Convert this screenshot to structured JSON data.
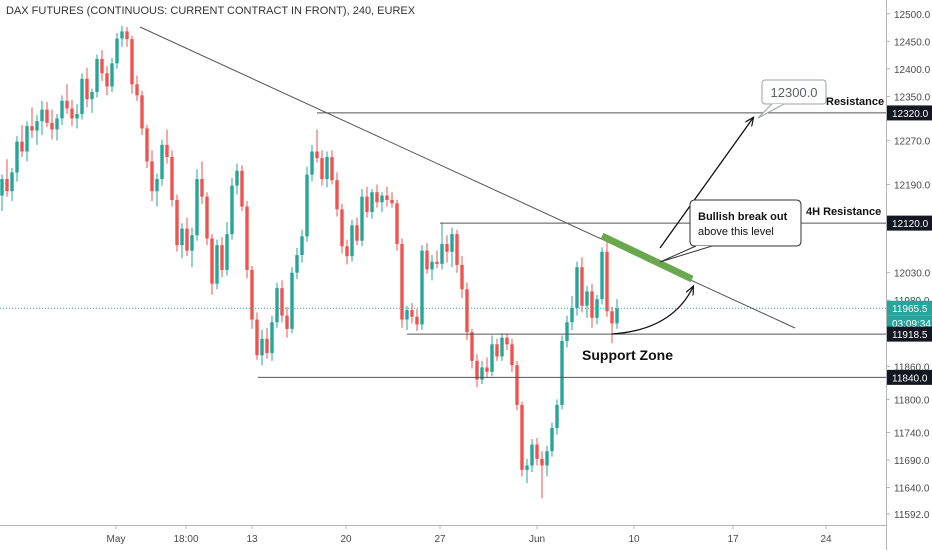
{
  "chart_data": {
    "type": "candlestick",
    "title": "DAX FUTURES (CONTINUOUS: CURRENT CONTRACT IN FRONT), 240, EUREX",
    "ylim": [
      11572,
      12525
    ],
    "y_ticks": [
      12500.0,
      12450.0,
      12400.0,
      12350.0,
      12270.0,
      12190.0,
      12030.0,
      11980.0,
      11860.0,
      11800.0,
      11740.0,
      11690.0,
      11640.0,
      11592.0
    ],
    "x_ticks": [
      "May",
      "18:00",
      "13",
      "20",
      "27",
      "Jun",
      "10",
      "17",
      "24"
    ],
    "price_labels": {
      "resistance": "12320.0",
      "resistance_4h": "12120.0",
      "current": "11965.5",
      "countdown": "03:09:34",
      "support_upper": "11918.5",
      "support_lower": "11840.0"
    },
    "levels": {
      "resistance": 12320.0,
      "resistance_4h": 12120.0,
      "current": 11965.5,
      "support_upper": 11918.5,
      "support_lower": 11840.0,
      "target": 12300.0
    },
    "annotations": {
      "resistance": "Resistance",
      "resistance_4h": "4H Resistance",
      "support_zone": "Support Zone",
      "target_box": "12300.0",
      "callout_line1": "Bullish break out",
      "callout_line2": "above this level"
    },
    "colors": {
      "up": "#26a69a",
      "down": "#ef5350",
      "line": "#555555",
      "breakout": "#6aa84f",
      "label_bg": "#131722",
      "current_line": "#26a69a"
    },
    "candles": [
      [
        12170,
        12208,
        12142,
        12200
      ],
      [
        12200,
        12236,
        12168,
        12178
      ],
      [
        12178,
        12220,
        12160,
        12212
      ],
      [
        12212,
        12278,
        12195,
        12268
      ],
      [
        12268,
        12298,
        12240,
        12250
      ],
      [
        12250,
        12305,
        12232,
        12296
      ],
      [
        12296,
        12330,
        12275,
        12288
      ],
      [
        12288,
        12316,
        12262,
        12305
      ],
      [
        12305,
        12342,
        12280,
        12326
      ],
      [
        12326,
        12340,
        12294,
        12302
      ],
      [
        12302,
        12326,
        12272,
        12290
      ],
      [
        12290,
        12318,
        12270,
        12310
      ],
      [
        12310,
        12352,
        12298,
        12342
      ],
      [
        12342,
        12372,
        12318,
        12328
      ],
      [
        12328,
        12344,
        12296,
        12310
      ],
      [
        12310,
        12336,
        12292,
        12318
      ],
      [
        12318,
        12392,
        12308,
        12382
      ],
      [
        12382,
        12402,
        12330,
        12345
      ],
      [
        12345,
        12364,
        12320,
        12358
      ],
      [
        12358,
        12426,
        12348,
        12418
      ],
      [
        12418,
        12434,
        12378,
        12392
      ],
      [
        12392,
        12405,
        12352,
        12368
      ],
      [
        12368,
        12420,
        12358,
        12410
      ],
      [
        12410,
        12465,
        12400,
        12455
      ],
      [
        12455,
        12478,
        12440,
        12468
      ],
      [
        12468,
        12476,
        12440,
        12454
      ],
      [
        12454,
        12460,
        12355,
        12372
      ],
      [
        12372,
        12388,
        12342,
        12352
      ],
      [
        12352,
        12360,
        12280,
        12292
      ],
      [
        12292,
        12298,
        12220,
        12232
      ],
      [
        12232,
        12252,
        12160,
        12178
      ],
      [
        12178,
        12210,
        12150,
        12200
      ],
      [
        12200,
        12272,
        12188,
        12262
      ],
      [
        12262,
        12290,
        12228,
        12240
      ],
      [
        12240,
        12252,
        12150,
        12162
      ],
      [
        12162,
        12172,
        12068,
        12080
      ],
      [
        12080,
        12120,
        12056,
        12110
      ],
      [
        12110,
        12130,
        12060,
        12070
      ],
      [
        12070,
        12112,
        12040,
        12098
      ],
      [
        12098,
        12218,
        12088,
        12200
      ],
      [
        12200,
        12232,
        12155,
        12168
      ],
      [
        12168,
        12176,
        12080,
        12092
      ],
      [
        12092,
        12100,
        11990,
        12010
      ],
      [
        12010,
        12090,
        12000,
        12080
      ],
      [
        12080,
        12095,
        12022,
        12035
      ],
      [
        12035,
        12122,
        12025,
        12100
      ],
      [
        12100,
        12202,
        12090,
        12188
      ],
      [
        12188,
        12228,
        12172,
        12215
      ],
      [
        12215,
        12225,
        12142,
        12150
      ],
      [
        12150,
        12160,
        12020,
        12035
      ],
      [
        12035,
        12042,
        11928,
        11945
      ],
      [
        11945,
        11958,
        11872,
        11880
      ],
      [
        11880,
        11926,
        11862,
        11910
      ],
      [
        11910,
        11930,
        11874,
        11884
      ],
      [
        11884,
        11952,
        11870,
        11940
      ],
      [
        11940,
        12012,
        11930,
        12002
      ],
      [
        12002,
        12016,
        11940,
        11952
      ],
      [
        11952,
        11968,
        11912,
        11928
      ],
      [
        11928,
        12040,
        11920,
        12030
      ],
      [
        12030,
        12075,
        12018,
        12062
      ],
      [
        12062,
        12108,
        12048,
        12096
      ],
      [
        12096,
        12222,
        12086,
        12208
      ],
      [
        12208,
        12262,
        12196,
        12250
      ],
      [
        12250,
        12290,
        12230,
        12238
      ],
      [
        12238,
        12252,
        12188,
        12200
      ],
      [
        12200,
        12250,
        12185,
        12240
      ],
      [
        12240,
        12252,
        12190,
        12198
      ],
      [
        12198,
        12212,
        12132,
        12145
      ],
      [
        12145,
        12155,
        12065,
        12078
      ],
      [
        12078,
        12090,
        12045,
        12060
      ],
      [
        12060,
        12126,
        12050,
        12116
      ],
      [
        12116,
        12130,
        12080,
        12088
      ],
      [
        12088,
        12182,
        12078,
        12168
      ],
      [
        12168,
        12186,
        12130,
        12140
      ],
      [
        12140,
        12182,
        12128,
        12176
      ],
      [
        12176,
        12190,
        12148,
        12158
      ],
      [
        12158,
        12176,
        12140,
        12170
      ],
      [
        12170,
        12186,
        12150,
        12162
      ],
      [
        12162,
        12176,
        12148,
        12156
      ],
      [
        12156,
        12162,
        12070,
        12082
      ],
      [
        12082,
        12092,
        11930,
        11945
      ],
      [
        11945,
        11970,
        11926,
        11962
      ],
      [
        11962,
        11975,
        11938,
        11950
      ],
      [
        11950,
        11964,
        11924,
        11936
      ],
      [
        11936,
        12080,
        11926,
        12070
      ],
      [
        12070,
        12084,
        12028,
        12036
      ],
      [
        12036,
        12062,
        12016,
        12050
      ],
      [
        12050,
        12070,
        12038,
        12046
      ],
      [
        12046,
        12120,
        12036,
        12082
      ],
      [
        12082,
        12098,
        12048,
        12068
      ],
      [
        12068,
        12112,
        12040,
        12100
      ],
      [
        12100,
        12108,
        12030,
        12044
      ],
      [
        12044,
        12060,
        11984,
        12000
      ],
      [
        12000,
        12012,
        11908,
        11922
      ],
      [
        11922,
        11928,
        11856,
        11870
      ],
      [
        11870,
        11882,
        11822,
        11836
      ],
      [
        11836,
        11870,
        11828,
        11858
      ],
      [
        11858,
        11876,
        11840,
        11850
      ],
      [
        11850,
        11916,
        11842,
        11900
      ],
      [
        11900,
        11910,
        11870,
        11878
      ],
      [
        11878,
        11920,
        11870,
        11912
      ],
      [
        11912,
        11920,
        11890,
        11900
      ],
      [
        11900,
        11910,
        11850,
        11862
      ],
      [
        11862,
        11870,
        11780,
        11790
      ],
      [
        11790,
        11796,
        11660,
        11672
      ],
      [
        11672,
        11692,
        11648,
        11680
      ],
      [
        11680,
        11728,
        11668,
        11718
      ],
      [
        11718,
        11730,
        11680,
        11692
      ],
      [
        11692,
        11706,
        11620,
        11680
      ],
      [
        11680,
        11716,
        11660,
        11706
      ],
      [
        11706,
        11758,
        11696,
        11748
      ],
      [
        11748,
        11800,
        11736,
        11790
      ],
      [
        11790,
        11916,
        11782,
        11906
      ],
      [
        11906,
        11952,
        11894,
        11940
      ],
      [
        11940,
        11988,
        11926,
        11966
      ],
      [
        11966,
        12050,
        11952,
        12040
      ],
      [
        12040,
        12058,
        11958,
        11970
      ],
      [
        11970,
        12006,
        11948,
        11996
      ],
      [
        11996,
        12010,
        11930,
        11948
      ],
      [
        11948,
        11990,
        11936,
        11982
      ],
      [
        11982,
        12076,
        11972,
        12068
      ],
      [
        12068,
        12086,
        11950,
        11960
      ],
      [
        11960,
        11968,
        11902,
        11938
      ],
      [
        11938,
        11982,
        11928,
        11965
      ]
    ]
  }
}
